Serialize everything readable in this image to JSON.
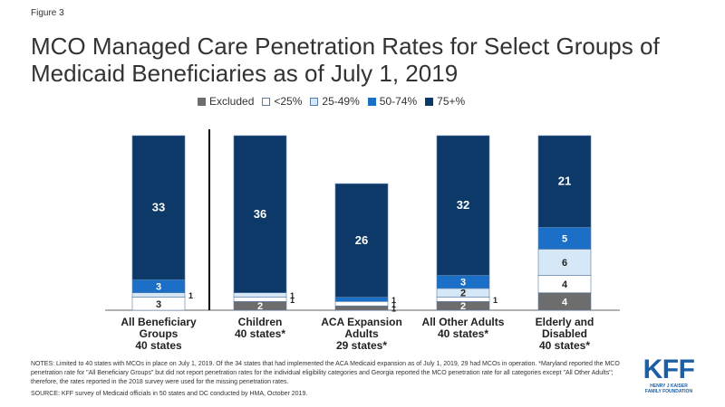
{
  "figure_label": "Figure 3",
  "footer": {
    "notes": "NOTES: Limited to 40 states with MCOs in place on July 1, 2019. Of the 34 states that had implemented the ACA Medicaid expansion as of July 1, 2019, 29 had MCOs in operation. *Maryland reported the MCO penetration rate for \"All Beneficiary Groups\" but did not report penetration rates for the individual eligibility categories and Georgia reported the MCO penetration rate for all categories except \"All Other Adults\"; therefore, the rates reported in the 2018 survey were used for the missing penetration rates.",
    "source": "SOURCE: KFF survey of Medicaid officials in 50 states and DC conducted by HMA, October 2019.",
    "logo_text": "KFF",
    "logo_subtext_1": "HENRY J KAISER",
    "logo_subtext_2": "FAMILY FOUNDATION"
  },
  "colors": {
    "Excluded": "#6d6d6d",
    "<25%": "#ffffff",
    "25-49%": "#d6e7f7",
    "50-74%": "#1b6fc6",
    "75+%": "#0d3969",
    "outline": "#5a7ea6",
    "axis": "#666666",
    "divider": "#000000"
  },
  "chart_data": {
    "type": "bar",
    "stacked": true,
    "title": "MCO Managed Care Penetration Rates for Select Groups of Medicaid Beneficiaries as of July 1, 2019",
    "legend_position": "top",
    "grid": false,
    "categories": [
      [
        "All Beneficiary",
        "Groups",
        "40 states"
      ],
      [
        "Children",
        "40 states*"
      ],
      [
        "ACA Expansion",
        "Adults",
        "29 states*"
      ],
      [
        "All Other Adults",
        "40 states*"
      ],
      [
        "Elderly and",
        "Disabled",
        "40 states*"
      ]
    ],
    "series": [
      {
        "name": "Excluded",
        "values": [
          0,
          2,
          1,
          2,
          4
        ],
        "labels": [
          "",
          "2",
          "1",
          "2",
          "4"
        ]
      },
      {
        "name": "<25%",
        "values": [
          3,
          1,
          1,
          1,
          4
        ],
        "labels": [
          "3",
          "1",
          "1",
          "1",
          "4"
        ]
      },
      {
        "name": "25-49%",
        "values": [
          1,
          1,
          0,
          2,
          6
        ],
        "labels": [
          "1",
          "1",
          "",
          "2",
          "6"
        ]
      },
      {
        "name": "50-74%",
        "values": [
          3,
          0,
          1,
          3,
          5
        ],
        "labels": [
          "3",
          "",
          "1",
          "3",
          "5"
        ]
      },
      {
        "name": "75+%",
        "values": [
          33,
          36,
          26,
          32,
          21
        ],
        "labels": [
          "33",
          "36",
          "26",
          "32",
          "21"
        ]
      }
    ],
    "ylim": [
      0,
      40
    ]
  }
}
